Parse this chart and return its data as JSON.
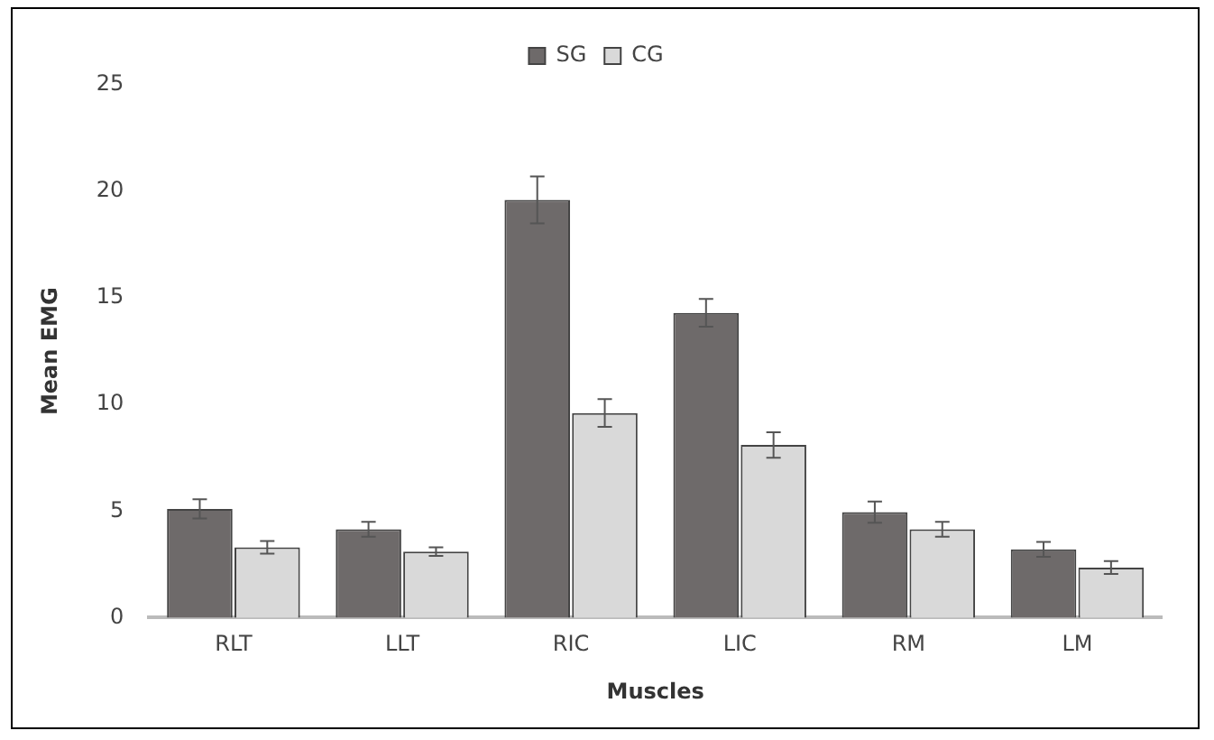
{
  "chart_data": {
    "type": "bar",
    "xlabel": "Muscles",
    "ylabel": "Mean EMG",
    "categories": [
      "RLT",
      "LLT",
      "RIC",
      "LIC",
      "RM",
      "LM"
    ],
    "series": [
      {
        "name": "SG",
        "color": "#6e6a6a",
        "values": [
          5.1,
          4.15,
          19.6,
          14.3,
          4.95,
          3.2
        ],
        "errors": [
          0.45,
          0.35,
          1.1,
          0.65,
          0.5,
          0.35
        ]
      },
      {
        "name": "CG",
        "color": "#d9d9d9",
        "values": [
          3.3,
          3.1,
          9.6,
          8.1,
          4.15,
          2.35
        ],
        "errors": [
          0.3,
          0.2,
          0.65,
          0.6,
          0.35,
          0.3
        ]
      }
    ],
    "ylim": [
      0,
      25
    ],
    "yticks": [
      0,
      5,
      10,
      15,
      20,
      25
    ],
    "grid": false,
    "legend": "top"
  }
}
